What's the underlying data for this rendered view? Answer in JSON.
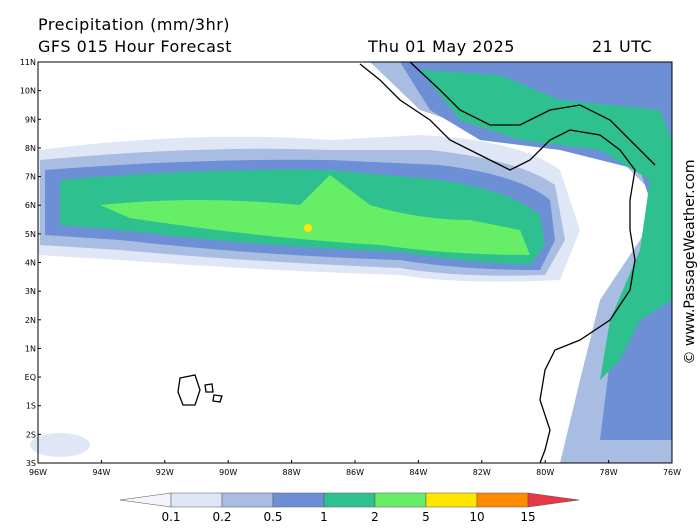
{
  "header": {
    "title": "Precipitation (mm/3hr)",
    "model": "GFS 015 Hour Forecast",
    "date": "Thu 01 May 2025",
    "time": "21 UTC"
  },
  "map": {
    "lat_labels": [
      "11N",
      "10N",
      "9N",
      "8N",
      "7N",
      "6N",
      "5N",
      "4N",
      "3N",
      "2N",
      "1N",
      "EQ",
      "1S",
      "2S",
      "3S"
    ],
    "lon_labels": [
      "96W",
      "94W",
      "92W",
      "90W",
      "88W",
      "86W",
      "84W",
      "82W",
      "80W",
      "78W",
      "76W"
    ]
  },
  "legend": {
    "levels": [
      0.1,
      0.2,
      0.5,
      1,
      2,
      5,
      10,
      15
    ],
    "colors": [
      "#f4f4fa",
      "#dfe7f6",
      "#a9bde3",
      "#6c8fd6",
      "#2ec18f",
      "#66ee66",
      "#ffe600",
      "#ff8a00",
      "#e83848"
    ]
  },
  "watermark": "© www.PassageWeather.com"
}
